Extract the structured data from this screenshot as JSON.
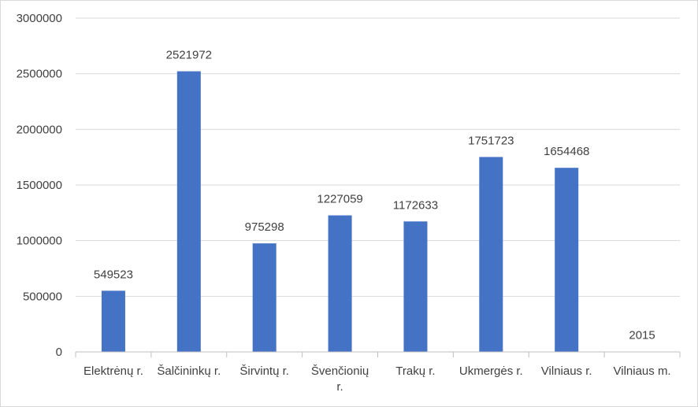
{
  "chart_data": {
    "type": "bar",
    "title": "",
    "xlabel": "",
    "ylabel": "",
    "categories": [
      [
        "Elektrėnų r."
      ],
      [
        "Šalčininkų r."
      ],
      [
        "Širvintų r."
      ],
      [
        "Švenčionių",
        "r."
      ],
      [
        "Trakų r."
      ],
      [
        "Ukmergės r."
      ],
      [
        "Vilniaus r."
      ],
      [
        "Vilniaus m."
      ]
    ],
    "values": [
      549523,
      2521972,
      975298,
      1227059,
      1172633,
      1751723,
      1654468,
      2015
    ],
    "data_labels": [
      "549523",
      "2521972",
      "975298",
      "1227059",
      "1172633",
      "1751723",
      "1654468",
      "2015"
    ],
    "ylim": [
      0,
      3000000
    ],
    "y_ticks": [
      0,
      500000,
      1000000,
      1500000,
      2000000,
      2500000,
      3000000
    ],
    "y_tick_labels": [
      "0",
      "500000",
      "1000000",
      "1500000",
      "2000000",
      "2500000",
      "3000000"
    ],
    "grid": true,
    "legend": "none",
    "colors": {
      "bar": "#4472C4",
      "grid": "#d9d9d9",
      "axis": "#bfbfbf",
      "text": "#404040"
    }
  }
}
